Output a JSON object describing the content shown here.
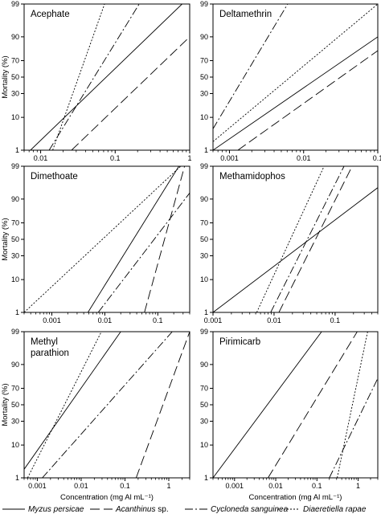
{
  "legend": [
    {
      "species": "Myzus persicae",
      "suffix": "",
      "dash": ""
    },
    {
      "species": "Acanthinus",
      "suffix": " sp.",
      "dash": "12,5"
    },
    {
      "species": "Cycloneda sanguinea",
      "suffix": "",
      "dash": "10,3,2,3"
    },
    {
      "species": "Diaeretiella rapae",
      "suffix": "",
      "dash": "2,2"
    }
  ],
  "chart_data": [
    {
      "type": "line",
      "title": [
        "Acephate"
      ],
      "ylabel": "Mortality (%)",
      "xlabel": "",
      "xscale": "log",
      "yscale": "probit",
      "xlim": [
        0.006,
        1
      ],
      "ylim": [
        1,
        99
      ],
      "xticks": [
        0.01,
        0.1,
        1
      ],
      "xticklabels": [
        "0.01",
        "0.1",
        "1"
      ],
      "yticks": [
        1,
        10,
        30,
        50,
        70,
        90,
        99
      ],
      "yticklabels": [
        "1",
        "10",
        "30",
        "50",
        "70",
        "90",
        "99"
      ],
      "series": [
        {
          "x": [
            0.0073,
            0.79
          ],
          "y": [
            1,
            99
          ]
        },
        {
          "x": [
            0.026,
            1.0
          ],
          "y": [
            1,
            90
          ]
        },
        {
          "x": [
            0.013,
            0.21
          ],
          "y": [
            1,
            99
          ]
        },
        {
          "x": [
            0.0145,
            0.072
          ],
          "y": [
            1,
            99
          ]
        }
      ]
    },
    {
      "type": "line",
      "title": [
        "Deltamethrin"
      ],
      "ylabel": "",
      "xlabel": "",
      "xscale": "log",
      "yscale": "probit",
      "xlim": [
        0.0006,
        0.1
      ],
      "ylim": [
        1,
        99
      ],
      "xticks": [
        0.001,
        0.01,
        0.1
      ],
      "xticklabels": [
        "0.001",
        "0.01",
        "0.1"
      ],
      "yticks": [
        1,
        10,
        30,
        50,
        70,
        90,
        99
      ],
      "yticklabels": [
        "1",
        "10",
        "30",
        "50",
        "70",
        "90",
        "99"
      ],
      "series": [
        {
          "x": [
            0.0006,
            0.1
          ],
          "y": [
            1,
            90
          ]
        },
        {
          "x": [
            0.0013,
            0.1
          ],
          "y": [
            1,
            80
          ]
        },
        {
          "x": [
            0.0006,
            0.0061
          ],
          "y": [
            5,
            99
          ]
        },
        {
          "x": [
            0.0006,
            0.1
          ],
          "y": [
            2,
            99
          ]
        }
      ]
    },
    {
      "type": "line",
      "title": [
        "Dimethoate"
      ],
      "ylabel": "Mortality (%)",
      "xlabel": "",
      "xscale": "log",
      "yscale": "probit",
      "xlim": [
        0.0003,
        0.4
      ],
      "ylim": [
        1,
        99
      ],
      "xticks": [
        0.001,
        0.01,
        0.1
      ],
      "xticklabels": [
        "0.001",
        "0.01",
        "0.1"
      ],
      "yticks": [
        1,
        10,
        30,
        50,
        70,
        90,
        99
      ],
      "yticklabels": [
        "1",
        "10",
        "30",
        "50",
        "70",
        "90",
        "99"
      ],
      "series": [
        {
          "x": [
            0.0048,
            0.25
          ],
          "y": [
            1,
            99
          ]
        },
        {
          "x": [
            0.056,
            0.32
          ],
          "y": [
            1,
            99
          ]
        },
        {
          "x": [
            0.0075,
            0.4
          ],
          "y": [
            1,
            93
          ]
        },
        {
          "x": [
            0.0003,
            0.27
          ],
          "y": [
            1,
            99
          ]
        }
      ]
    },
    {
      "type": "line",
      "title": [
        "Methamidophos"
      ],
      "ylabel": "",
      "xlabel": "",
      "xscale": "log",
      "yscale": "probit",
      "xlim": [
        0.001,
        0.5
      ],
      "ylim": [
        1,
        99
      ],
      "xticks": [
        0.001,
        0.01,
        0.1
      ],
      "xticklabels": [
        "0.001",
        "0.01",
        "0.1"
      ],
      "yticks": [
        1,
        10,
        30,
        50,
        70,
        90,
        99
      ],
      "yticklabels": [
        "1",
        "10",
        "30",
        "50",
        "70",
        "90",
        "99"
      ],
      "series": [
        {
          "x": [
            0.001,
            0.5
          ],
          "y": [
            1,
            95
          ]
        },
        {
          "x": [
            0.012,
            0.19
          ],
          "y": [
            1,
            99
          ]
        },
        {
          "x": [
            0.0088,
            0.14
          ],
          "y": [
            1,
            99
          ]
        },
        {
          "x": [
            0.0052,
            0.066
          ],
          "y": [
            1,
            99
          ]
        }
      ]
    },
    {
      "type": "line",
      "title": [
        "Methyl",
        "parathion"
      ],
      "ylabel": "Mortality (%)",
      "xlabel": "Concentration (mg Al mL⁻¹)",
      "xscale": "log",
      "yscale": "probit",
      "xlim": [
        0.0005,
        3.0
      ],
      "ylim": [
        1,
        99
      ],
      "xticks": [
        0.001,
        0.01,
        0.1,
        1
      ],
      "xticklabels": [
        "0.001",
        "0.01",
        "0.1",
        "1"
      ],
      "yticks": [
        1,
        10,
        30,
        50,
        70,
        90,
        99
      ],
      "yticklabels": [
        "1",
        "10",
        "30",
        "50",
        "70",
        "90",
        "99"
      ],
      "series": [
        {
          "x": [
            0.0005,
            0.08
          ],
          "y": [
            2,
            99
          ]
        },
        {
          "x": [
            0.18,
            3.0
          ],
          "y": [
            1,
            99
          ]
        },
        {
          "x": [
            0.0013,
            1.2
          ],
          "y": [
            1,
            99
          ]
        },
        {
          "x": [
            0.0006,
            0.029
          ],
          "y": [
            1,
            99
          ]
        }
      ]
    },
    {
      "type": "line",
      "title": [
        "Pirimicarb"
      ],
      "ylabel": "",
      "xlabel": "Concentration (mg Al mL⁻¹)",
      "xscale": "log",
      "yscale": "probit",
      "xlim": [
        0.0003,
        3.0
      ],
      "ylim": [
        1,
        99
      ],
      "xticks": [
        0.001,
        0.01,
        0.1,
        1
      ],
      "xticklabels": [
        "0.001",
        "0.01",
        "0.1",
        "1"
      ],
      "yticks": [
        1,
        10,
        30,
        50,
        70,
        90,
        99
      ],
      "yticklabels": [
        "1",
        "10",
        "30",
        "50",
        "70",
        "90",
        "99"
      ],
      "series": [
        {
          "x": [
            0.0003,
            0.13
          ],
          "y": [
            1,
            99
          ]
        },
        {
          "x": [
            0.0065,
            0.95
          ],
          "y": [
            1,
            99
          ]
        },
        {
          "x": [
            0.2,
            3.0
          ],
          "y": [
            1,
            80
          ]
        },
        {
          "x": [
            0.31,
            1.7
          ],
          "y": [
            1,
            99
          ]
        }
      ]
    }
  ]
}
